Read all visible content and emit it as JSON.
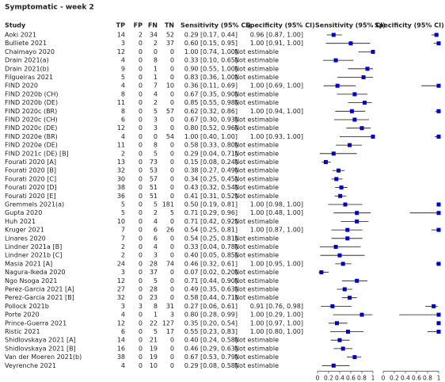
{
  "title": "Symptomatic - week 2",
  "columns": {
    "study": "Study",
    "tp": "TP",
    "fp": "FP",
    "fn": "FN",
    "tn": "TN",
    "sens": "Sensitivity (95% CI)",
    "spec": "Specificity (95% CI)",
    "sens_plot": "Sensitivity (95% CI)",
    "spec_plot": "Specificity (95% CI)"
  },
  "axis_ticks": [
    0,
    0.2,
    0.4,
    0.6,
    0.8,
    1
  ],
  "rows": [
    {
      "study": "Aoki 2021",
      "tp": 14,
      "fp": 2,
      "fn": 34,
      "tn": 52,
      "sens": {
        "value": 0.29,
        "lo": 0.17,
        "hi": 0.44,
        "label": "0.29 [0.17, 0.44]"
      },
      "spec": {
        "value": 0.96,
        "lo": 0.87,
        "hi": 1,
        "label": "0.96 [0.87, 1.00]"
      }
    },
    {
      "study": "Bulliete 2021",
      "tp": 3,
      "fp": 0,
      "fn": 2,
      "tn": 37,
      "sens": {
        "value": 0.6,
        "lo": 0.15,
        "hi": 0.95,
        "label": "0.60 [0.15, 0.95]"
      },
      "spec": {
        "value": 1,
        "lo": 0.91,
        "hi": 1,
        "label": "1.00 [0.91, 1.00]"
      }
    },
    {
      "study": "Chaimayo 2020",
      "tp": 12,
      "fp": 0,
      "fn": 0,
      "tn": 0,
      "sens": {
        "value": 1,
        "lo": 0.74,
        "hi": 1,
        "label": "1.00 [0.74, 1.00]"
      },
      "spec": {
        "value": null,
        "lo": null,
        "hi": null,
        "label": "Not estimable"
      }
    },
    {
      "study": "Drain 2021(a)",
      "tp": 4,
      "fp": 0,
      "fn": 8,
      "tn": 0,
      "sens": {
        "value": 0.33,
        "lo": 0.1,
        "hi": 0.65,
        "label": "0.33 [0.10, 0.65]"
      },
      "spec": {
        "value": null,
        "lo": null,
        "hi": null,
        "label": "Not estimable"
      }
    },
    {
      "study": "Drain 2021(b)",
      "tp": 9,
      "fp": 0,
      "fn": 1,
      "tn": 0,
      "sens": {
        "value": 0.9,
        "lo": 0.55,
        "hi": 1,
        "label": "0.90 [0.55, 1.00]"
      },
      "spec": {
        "value": null,
        "lo": null,
        "hi": null,
        "label": "Not estimable"
      }
    },
    {
      "study": "Filgueiras 2021",
      "tp": 5,
      "fp": 0,
      "fn": 1,
      "tn": 0,
      "sens": {
        "value": 0.83,
        "lo": 0.36,
        "hi": 1,
        "label": "0.83 [0.36, 1.00]"
      },
      "spec": {
        "value": null,
        "lo": null,
        "hi": null,
        "label": "Not estimable"
      }
    },
    {
      "study": "FIND 2020",
      "tp": 4,
      "fp": 0,
      "fn": 7,
      "tn": 10,
      "sens": {
        "value": 0.36,
        "lo": 0.11,
        "hi": 0.69,
        "label": "0.36 [0.11, 0.69]"
      },
      "spec": {
        "value": 1,
        "lo": 0.69,
        "hi": 1,
        "label": "1.00 [0.69, 1.00]"
      }
    },
    {
      "study": "FIND 2020b (CH)",
      "tp": 8,
      "fp": 0,
      "fn": 4,
      "tn": 0,
      "sens": {
        "value": 0.67,
        "lo": 0.35,
        "hi": 0.9,
        "label": "0.67 [0.35, 0.90]"
      },
      "spec": {
        "value": null,
        "lo": null,
        "hi": null,
        "label": "Not estimable"
      }
    },
    {
      "study": "FIND 2020b (DE)",
      "tp": 11,
      "fp": 0,
      "fn": 2,
      "tn": 0,
      "sens": {
        "value": 0.85,
        "lo": 0.55,
        "hi": 0.98,
        "label": "0.85 [0.55, 0.98]"
      },
      "spec": {
        "value": null,
        "lo": null,
        "hi": null,
        "label": "Not estimable"
      }
    },
    {
      "study": "FIND 2020c (BR)",
      "tp": 8,
      "fp": 0,
      "fn": 5,
      "tn": 57,
      "sens": {
        "value": 0.62,
        "lo": 0.32,
        "hi": 0.86,
        "label": "0.62 [0.32, 0.86]"
      },
      "spec": {
        "value": 1,
        "lo": 0.94,
        "hi": 1,
        "label": "1.00 [0.94, 1.00]"
      }
    },
    {
      "study": "FIND 2020c (CH)",
      "tp": 6,
      "fp": 0,
      "fn": 3,
      "tn": 0,
      "sens": {
        "value": 0.67,
        "lo": 0.3,
        "hi": 0.93,
        "label": "0.67 [0.30, 0.93]"
      },
      "spec": {
        "value": null,
        "lo": null,
        "hi": null,
        "label": "Not estimable"
      }
    },
    {
      "study": "FIND 2020c (DE)",
      "tp": 12,
      "fp": 0,
      "fn": 3,
      "tn": 0,
      "sens": {
        "value": 0.8,
        "lo": 0.52,
        "hi": 0.96,
        "label": "0.80 [0.52, 0.96]"
      },
      "spec": {
        "value": null,
        "lo": null,
        "hi": null,
        "label": "Not estimable"
      }
    },
    {
      "study": "FIND 2020e (BR)",
      "tp": 4,
      "fp": 0,
      "fn": 0,
      "tn": 54,
      "sens": {
        "value": 1,
        "lo": 0.4,
        "hi": 1,
        "label": "1.00 [0.40, 1.00]"
      },
      "spec": {
        "value": 1,
        "lo": 0.93,
        "hi": 1,
        "label": "1.00 [0.93, 1.00]"
      }
    },
    {
      "study": "FIND 2020e (DE)",
      "tp": 11,
      "fp": 0,
      "fn": 8,
      "tn": 0,
      "sens": {
        "value": 0.58,
        "lo": 0.33,
        "hi": 0.8,
        "label": "0.58 [0.33, 0.80]"
      },
      "spec": {
        "value": null,
        "lo": null,
        "hi": null,
        "label": "Not estimable"
      }
    },
    {
      "study": "FIND 2021c (DE) [B]",
      "tp": 2,
      "fp": 0,
      "fn": 5,
      "tn": 0,
      "sens": {
        "value": 0.29,
        "lo": 0.04,
        "hi": 0.71,
        "label": "0.29 [0.04, 0.71]"
      },
      "spec": {
        "value": null,
        "lo": null,
        "hi": null,
        "label": "Not estimable"
      }
    },
    {
      "study": "Fourati 2020 [A]",
      "tp": 13,
      "fp": 0,
      "fn": 73,
      "tn": 0,
      "sens": {
        "value": 0.15,
        "lo": 0.08,
        "hi": 0.24,
        "label": "0.15 [0.08, 0.24]"
      },
      "spec": {
        "value": null,
        "lo": null,
        "hi": null,
        "label": "Not estimable"
      }
    },
    {
      "study": "Fourati 2020 [B]",
      "tp": 32,
      "fp": 0,
      "fn": 53,
      "tn": 0,
      "sens": {
        "value": 0.38,
        "lo": 0.27,
        "hi": 0.49,
        "label": "0.38 [0.27, 0.49]"
      },
      "spec": {
        "value": null,
        "lo": null,
        "hi": null,
        "label": "Not estimable"
      }
    },
    {
      "study": "Fourati 2020 [C]",
      "tp": 30,
      "fp": 0,
      "fn": 57,
      "tn": 0,
      "sens": {
        "value": 0.34,
        "lo": 0.25,
        "hi": 0.45,
        "label": "0.34 [0.25, 0.45]"
      },
      "spec": {
        "value": null,
        "lo": null,
        "hi": null,
        "label": "Not estimable"
      }
    },
    {
      "study": "Fourati 2020 [D]",
      "tp": 38,
      "fp": 0,
      "fn": 51,
      "tn": 0,
      "sens": {
        "value": 0.43,
        "lo": 0.32,
        "hi": 0.54,
        "label": "0.43 [0.32, 0.54]"
      },
      "spec": {
        "value": null,
        "lo": null,
        "hi": null,
        "label": "Not estimable"
      }
    },
    {
      "study": "Fourati 2020 [E]",
      "tp": 36,
      "fp": 0,
      "fn": 51,
      "tn": 0,
      "sens": {
        "value": 0.41,
        "lo": 0.31,
        "hi": 0.52,
        "label": "0.41 [0.31, 0.52]"
      },
      "spec": {
        "value": null,
        "lo": null,
        "hi": null,
        "label": "Not estimable"
      }
    },
    {
      "study": "Gremmels 2021(a)",
      "tp": 5,
      "fp": 0,
      "fn": 5,
      "tn": 181,
      "sens": {
        "value": 0.5,
        "lo": 0.19,
        "hi": 0.81,
        "label": "0.50 [0.19, 0.81]"
      },
      "spec": {
        "value": 1,
        "lo": 0.98,
        "hi": 1,
        "label": "1.00 [0.98, 1.00]"
      }
    },
    {
      "study": "Gupta 2020",
      "tp": 5,
      "fp": 0,
      "fn": 2,
      "tn": 5,
      "sens": {
        "value": 0.71,
        "lo": 0.29,
        "hi": 0.96,
        "label": "0.71 [0.29, 0.96]"
      },
      "spec": {
        "value": 1,
        "lo": 0.48,
        "hi": 1,
        "label": "1.00 [0.48, 1.00]"
      }
    },
    {
      "study": "Huh 2021",
      "tp": 10,
      "fp": 0,
      "fn": 4,
      "tn": 0,
      "sens": {
        "value": 0.71,
        "lo": 0.42,
        "hi": 0.92,
        "label": "0.71 [0.42, 0.92]"
      },
      "spec": {
        "value": null,
        "lo": null,
        "hi": null,
        "label": "Not estimable"
      }
    },
    {
      "study": "Kruger 2021",
      "tp": 7,
      "fp": 0,
      "fn": 6,
      "tn": 26,
      "sens": {
        "value": 0.54,
        "lo": 0.25,
        "hi": 0.81,
        "label": "0.54 [0.25, 0.81]"
      },
      "spec": {
        "value": 1,
        "lo": 0.87,
        "hi": 1,
        "label": "1.00 [0.87, 1.00]"
      }
    },
    {
      "study": "Linares 2020",
      "tp": 7,
      "fp": 0,
      "fn": 6,
      "tn": 0,
      "sens": {
        "value": 0.54,
        "lo": 0.25,
        "hi": 0.81,
        "label": "0.54 [0.25, 0.81]"
      },
      "spec": {
        "value": null,
        "lo": null,
        "hi": null,
        "label": "Not estimable"
      }
    },
    {
      "study": "Lindner 2021a [B]",
      "tp": 2,
      "fp": 0,
      "fn": 4,
      "tn": 0,
      "sens": {
        "value": 0.33,
        "lo": 0.04,
        "hi": 0.78,
        "label": "0.33 [0.04, 0.78]"
      },
      "spec": {
        "value": null,
        "lo": null,
        "hi": null,
        "label": "Not estimable"
      }
    },
    {
      "study": "Lindner 2021b [C]",
      "tp": 2,
      "fp": 0,
      "fn": 3,
      "tn": 0,
      "sens": {
        "value": 0.4,
        "lo": 0.05,
        "hi": 0.85,
        "label": "0.40 [0.05, 0.85]"
      },
      "spec": {
        "value": null,
        "lo": null,
        "hi": null,
        "label": "Not estimable"
      }
    },
    {
      "study": "Masia 2021 [A]",
      "tp": 24,
      "fp": 0,
      "fn": 28,
      "tn": 74,
      "sens": {
        "value": 0.46,
        "lo": 0.32,
        "hi": 0.61,
        "label": "0.46 [0.32, 0.61]"
      },
      "spec": {
        "value": 1,
        "lo": 0.95,
        "hi": 1,
        "label": "1.00 [0.95, 1.00]"
      }
    },
    {
      "study": "Nagura-Ikeda 2020",
      "tp": 3,
      "fp": 0,
      "fn": 37,
      "tn": 0,
      "sens": {
        "value": 0.07,
        "lo": 0.02,
        "hi": 0.2,
        "label": "0.07 [0.02, 0.20]"
      },
      "spec": {
        "value": null,
        "lo": null,
        "hi": null,
        "label": "Not estimable"
      }
    },
    {
      "study": "Ngo Nsoga 2021",
      "tp": 12,
      "fp": 0,
      "fn": 5,
      "tn": 0,
      "sens": {
        "value": 0.71,
        "lo": 0.44,
        "hi": 0.9,
        "label": "0.71 [0.44, 0.90]"
      },
      "spec": {
        "value": null,
        "lo": null,
        "hi": null,
        "label": "Not estimable"
      }
    },
    {
      "study": "Perez-Garcia 2021 [A]",
      "tp": 27,
      "fp": 0,
      "fn": 28,
      "tn": 0,
      "sens": {
        "value": 0.49,
        "lo": 0.35,
        "hi": 0.63,
        "label": "0.49 [0.35, 0.63]"
      },
      "spec": {
        "value": null,
        "lo": null,
        "hi": null,
        "label": "Not estimable"
      }
    },
    {
      "study": "Perez-Garcia 2021 [B]",
      "tp": 32,
      "fp": 0,
      "fn": 23,
      "tn": 0,
      "sens": {
        "value": 0.58,
        "lo": 0.44,
        "hi": 0.71,
        "label": "0.58 [0.44, 0.71]"
      },
      "spec": {
        "value": null,
        "lo": null,
        "hi": null,
        "label": "Not estimable"
      }
    },
    {
      "study": "Pollock 2021b",
      "tp": 3,
      "fp": 3,
      "fn": 8,
      "tn": 31,
      "sens": {
        "value": 0.27,
        "lo": 0.06,
        "hi": 0.61,
        "label": "0.27 [0.06, 0.61]"
      },
      "spec": {
        "value": 0.91,
        "lo": 0.76,
        "hi": 0.98,
        "label": "0.91 [0.76, 0.98]"
      }
    },
    {
      "study": "Porte 2020",
      "tp": 4,
      "fp": 0,
      "fn": 1,
      "tn": 3,
      "sens": {
        "value": 0.8,
        "lo": 0.28,
        "hi": 0.99,
        "label": "0.80 [0.28, 0.99]"
      },
      "spec": {
        "value": 1,
        "lo": 0.29,
        "hi": 1,
        "label": "1.00 [0.29, 1.00]"
      }
    },
    {
      "study": "Prince-Guerra 2021",
      "tp": 12,
      "fp": 0,
      "fn": 22,
      "tn": 127,
      "sens": {
        "value": 0.35,
        "lo": 0.2,
        "hi": 0.54,
        "label": "0.35 [0.20, 0.54]"
      },
      "spec": {
        "value": 1,
        "lo": 0.97,
        "hi": 1,
        "label": "1.00 [0.97, 1.00]"
      }
    },
    {
      "study": "Ristic 2021",
      "tp": 6,
      "fp": 0,
      "fn": 5,
      "tn": 17,
      "sens": {
        "value": 0.55,
        "lo": 0.23,
        "hi": 0.83,
        "label": "0.55 [0.23, 0.83]"
      },
      "spec": {
        "value": 1,
        "lo": 0.8,
        "hi": 1,
        "label": "1.00 [0.80, 1.00]"
      }
    },
    {
      "study": "Shidlovskaya 2021 [A]",
      "tp": 14,
      "fp": 0,
      "fn": 21,
      "tn": 0,
      "sens": {
        "value": 0.4,
        "lo": 0.24,
        "hi": 0.58,
        "label": "0.40 [0.24, 0.58]"
      },
      "spec": {
        "value": null,
        "lo": null,
        "hi": null,
        "label": "Not estimable"
      }
    },
    {
      "study": "Shidlovskaya 2021 [B]",
      "tp": 16,
      "fp": 0,
      "fn": 19,
      "tn": 0,
      "sens": {
        "value": 0.46,
        "lo": 0.29,
        "hi": 0.63,
        "label": "0.46 [0.29, 0.63]"
      },
      "spec": {
        "value": null,
        "lo": null,
        "hi": null,
        "label": "Not estimable"
      }
    },
    {
      "study": "Van der Moeren 2021(b)",
      "tp": 38,
      "fp": 0,
      "fn": 19,
      "tn": 0,
      "sens": {
        "value": 0.67,
        "lo": 0.53,
        "hi": 0.79,
        "label": "0.67 [0.53, 0.79]"
      },
      "spec": {
        "value": null,
        "lo": null,
        "hi": null,
        "label": "Not estimable"
      }
    },
    {
      "study": "Veyrenche 2021",
      "tp": 4,
      "fp": 0,
      "fn": 10,
      "tn": 0,
      "sens": {
        "value": 0.29,
        "lo": 0.08,
        "hi": 0.58,
        "label": "0.29 [0.08, 0.58]"
      },
      "spec": {
        "value": null,
        "lo": null,
        "hi": null,
        "label": "Not estimable"
      }
    }
  ]
}
